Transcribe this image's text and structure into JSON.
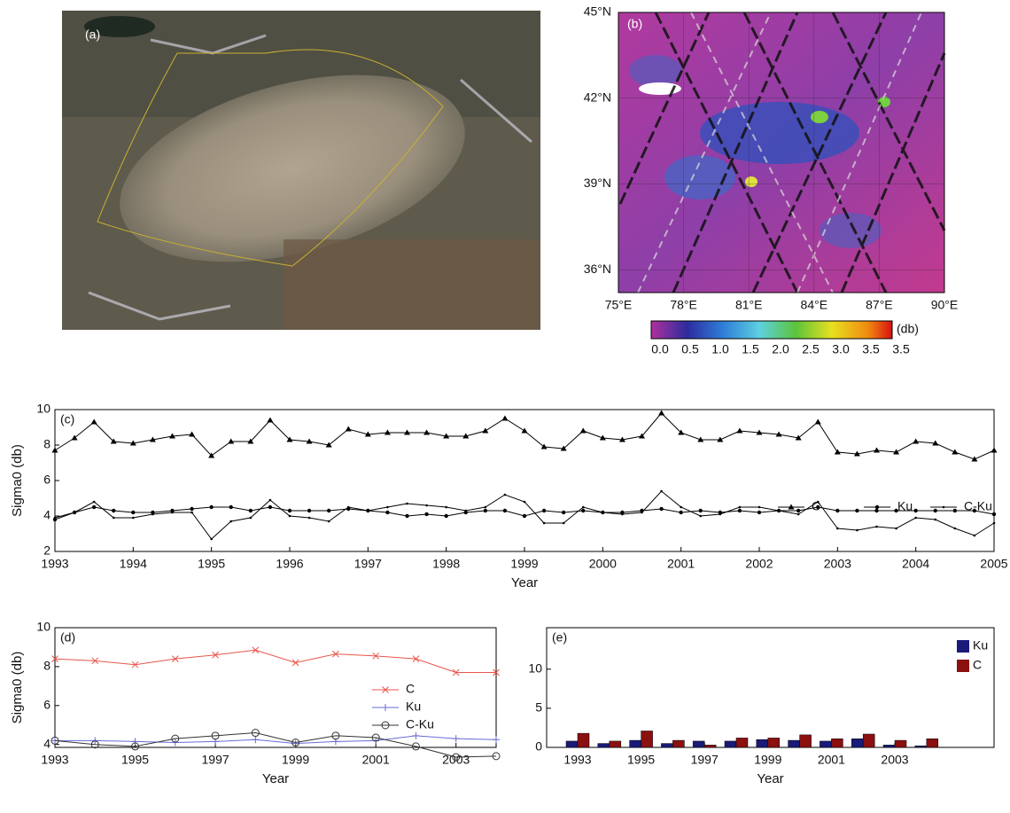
{
  "chart_data": [
    {
      "type": "image",
      "label": "(a)"
    },
    {
      "type": "map",
      "label": "(b)",
      "xlim": [
        75,
        90
      ],
      "ylim": [
        35.2,
        45
      ],
      "xticks": [
        {
          "value": 75,
          "label": "75°E"
        },
        {
          "value": 78,
          "label": "78°E"
        },
        {
          "value": 81,
          "label": "81°E"
        },
        {
          "value": 84,
          "label": "84°E"
        },
        {
          "value": 87,
          "label": "87°E"
        },
        {
          "value": 90,
          "label": "90°E"
        }
      ],
      "yticks": [
        {
          "value": 36,
          "label": "36°N"
        },
        {
          "value": 39,
          "label": "39°N"
        },
        {
          "value": 42,
          "label": "42°N"
        },
        {
          "value": 45,
          "label": "45°N"
        }
      ],
      "colorbar_labels": [
        "0.0",
        "0.5",
        "1.0",
        "1.5",
        "2.0",
        "2.5",
        "3.0",
        "3.5",
        "3.5"
      ],
      "colorbar_unit": "(db)"
    },
    {
      "type": "line",
      "label": "(c)",
      "xlabel": "Year",
      "ylabel": "Sigma0 (db)",
      "xlim": [
        1993,
        2005
      ],
      "xticks": [
        1993,
        1994,
        1995,
        1996,
        1997,
        1998,
        1999,
        2000,
        2001,
        2002,
        2003,
        2004,
        2005
      ],
      "ylim": [
        2,
        10
      ],
      "yticks": [
        2,
        4,
        6,
        8,
        10
      ],
      "legend": "center-right",
      "x": [
        1993,
        1993.25,
        1993.5,
        1993.75,
        1994,
        1994.25,
        1994.5,
        1994.75,
        1995,
        1995.25,
        1995.5,
        1995.75,
        1996,
        1996.25,
        1996.5,
        1996.75,
        1997,
        1997.25,
        1997.5,
        1997.75,
        1998,
        1998.25,
        1998.5,
        1998.75,
        1999,
        1999.25,
        1999.5,
        1999.75,
        2000,
        2000.25,
        2000.5,
        2000.75,
        2001,
        2001.25,
        2001.5,
        2001.75,
        2002,
        2002.25,
        2002.5,
        2002.75,
        2003,
        2003.25,
        2003.5,
        2003.75,
        2004,
        2004.25,
        2004.5,
        2004.75,
        2005
      ],
      "series": [
        {
          "name": "C",
          "color": "#000000",
          "marker": "triangle",
          "values": [
            7.7,
            8.4,
            9.3,
            8.2,
            8.1,
            8.3,
            8.5,
            8.6,
            7.4,
            8.2,
            8.2,
            9.4,
            8.3,
            8.2,
            8.0,
            8.9,
            8.6,
            8.7,
            8.7,
            8.7,
            8.5,
            8.5,
            8.8,
            9.5,
            8.8,
            7.9,
            7.8,
            8.8,
            8.4,
            8.3,
            8.5,
            9.8,
            8.7,
            8.3,
            8.3,
            8.8,
            8.7,
            8.6,
            8.4,
            9.3,
            7.6,
            7.5,
            7.7,
            7.6,
            8.2,
            8.1,
            7.6,
            7.2,
            7.7
          ]
        },
        {
          "name": "Ku",
          "color": "#000000",
          "marker": "dot",
          "values": [
            3.8,
            4.2,
            4.5,
            4.3,
            4.2,
            4.2,
            4.3,
            4.4,
            4.5,
            4.5,
            4.3,
            4.5,
            4.3,
            4.3,
            4.3,
            4.4,
            4.3,
            4.2,
            4.0,
            4.1,
            4.0,
            4.2,
            4.3,
            4.3,
            4.0,
            4.3,
            4.2,
            4.3,
            4.2,
            4.2,
            4.3,
            4.4,
            4.2,
            4.3,
            4.2,
            4.3,
            4.2,
            4.3,
            4.3,
            4.5,
            4.3,
            4.3,
            4.3,
            4.3,
            4.3,
            4.3,
            4.3,
            4.3,
            4.1
          ]
        },
        {
          "name": "C-Ku",
          "color": "#000000",
          "marker": "small-dot",
          "values": [
            3.9,
            4.2,
            4.8,
            3.9,
            3.9,
            4.1,
            4.2,
            4.2,
            2.7,
            3.7,
            3.9,
            4.9,
            4.0,
            3.9,
            3.7,
            4.5,
            4.3,
            4.5,
            4.7,
            4.6,
            4.5,
            4.3,
            4.5,
            5.2,
            4.8,
            3.6,
            3.6,
            4.5,
            4.2,
            4.1,
            4.2,
            5.4,
            4.5,
            4.0,
            4.1,
            4.5,
            4.5,
            4.3,
            4.1,
            4.8,
            3.3,
            3.2,
            3.4,
            3.3,
            3.9,
            3.8,
            3.3,
            2.9,
            3.6
          ]
        }
      ]
    },
    {
      "type": "line",
      "label": "(d)",
      "xlabel": "Year",
      "ylabel": "Sigma0 (db)",
      "xlim": [
        1993,
        2004
      ],
      "xticks": [
        1993,
        1995,
        1997,
        1999,
        2001,
        2003
      ],
      "ylim": [
        3.85,
        10
      ],
      "yticks": [
        4,
        6,
        8,
        10
      ],
      "legend": "center-right",
      "x": [
        1993,
        1994,
        1995,
        1996,
        1997,
        1998,
        1999,
        2000,
        2001,
        2002,
        2003,
        2004
      ],
      "series": [
        {
          "name": "C",
          "color": "#e8554a",
          "marker": "x",
          "values": [
            8.4,
            8.3,
            8.1,
            8.4,
            8.6,
            8.85,
            8.2,
            8.65,
            8.55,
            8.4,
            7.7,
            7.7
          ]
        },
        {
          "name": "Ku",
          "color": "#6a6ad8",
          "marker": "plus",
          "values": [
            4.2,
            4.2,
            4.15,
            4.1,
            4.15,
            4.25,
            4.05,
            4.15,
            4.2,
            4.45,
            4.3,
            4.25
          ]
        },
        {
          "name": "C-Ku",
          "color": "#333333",
          "marker": "circle",
          "values": [
            4.2,
            4.0,
            3.9,
            4.3,
            4.45,
            4.6,
            4.1,
            4.45,
            4.35,
            3.9,
            3.35,
            3.4
          ]
        }
      ]
    },
    {
      "type": "bar",
      "label": "(e)",
      "xlabel": "Year",
      "categories": [
        "1993",
        null,
        "1995",
        null,
        "1997",
        null,
        "1999",
        null,
        "2001",
        null,
        "2003",
        null
      ],
      "ylim": [
        0,
        15.3
      ],
      "yticks": [
        0,
        5,
        10
      ],
      "legend": "upper-right",
      "series": [
        {
          "name": "Ku",
          "color": "#1a1a78",
          "values": [
            0.8,
            0.5,
            0.9,
            0.5,
            0.8,
            0.8,
            1.0,
            0.9,
            0.8,
            1.1,
            0.3,
            0.2
          ]
        },
        {
          "name": "C",
          "color": "#8b1010",
          "values": [
            1.8,
            0.8,
            2.1,
            0.9,
            0.3,
            1.2,
            1.2,
            1.6,
            1.1,
            1.7,
            0.9,
            1.1
          ]
        }
      ]
    }
  ]
}
